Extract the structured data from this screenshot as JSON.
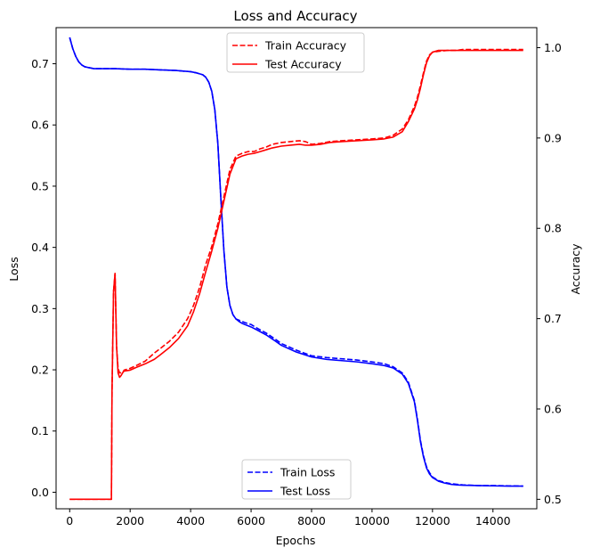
{
  "chart_data": {
    "type": "line",
    "title": "Loss and Accuracy",
    "xlabel": "Epochs",
    "ylabel_left": "Loss",
    "ylabel_right": "Accuracy",
    "xlim": [
      -450,
      15450
    ],
    "ylim_left": [
      -0.027,
      0.759
    ],
    "ylim_right": [
      0.4895,
      1.0222
    ],
    "x_ticks": [
      0,
      2000,
      4000,
      6000,
      8000,
      10000,
      12000,
      14000
    ],
    "y_left_ticks": [
      0.0,
      0.1,
      0.2,
      0.3,
      0.4,
      0.5,
      0.6,
      0.7
    ],
    "y_right_ticks": [
      0.5,
      0.6,
      0.7,
      0.8,
      0.9,
      1.0
    ],
    "x_tick_labels": [
      "0",
      "2000",
      "4000",
      "6000",
      "8000",
      "10000",
      "12000",
      "14000"
    ],
    "y_left_tick_labels": [
      "0.0",
      "0.1",
      "0.2",
      "0.3",
      "0.4",
      "0.5",
      "0.6",
      "0.7"
    ],
    "y_right_tick_labels": [
      "0.5",
      "0.6",
      "0.7",
      "0.8",
      "0.9",
      "1.0"
    ],
    "grid": false,
    "legends": {
      "accuracy": {
        "placement": "top-center",
        "entries": [
          "Train Accuracy",
          "Test Accuracy"
        ]
      },
      "loss": {
        "placement": "bottom-center",
        "entries": [
          "Train Loss",
          "Test Loss"
        ]
      }
    },
    "series": [
      {
        "name": "Train Loss",
        "axis": "left",
        "color": "#0000ff",
        "style": "dashed",
        "x": [
          0,
          100,
          200,
          300,
          400,
          500,
          600,
          800,
          1000,
          1500,
          2000,
          2500,
          3000,
          3500,
          4000,
          4200,
          4400,
          4500,
          4600,
          4700,
          4800,
          4900,
          5000,
          5100,
          5200,
          5300,
          5400,
          5500,
          5600,
          5700,
          5800,
          6000,
          6200,
          6500,
          6800,
          7000,
          7500,
          8000,
          8500,
          9000,
          9500,
          10000,
          10400,
          10700,
          11000,
          11200,
          11400,
          11500,
          11600,
          11700,
          11800,
          11900,
          12000,
          12200,
          12400,
          12600,
          12800,
          13000,
          13500,
          14000,
          14500,
          15000
        ],
        "y": [
          0.743,
          0.725,
          0.712,
          0.703,
          0.698,
          0.695,
          0.694,
          0.692,
          0.692,
          0.692,
          0.691,
          0.691,
          0.69,
          0.689,
          0.687,
          0.685,
          0.682,
          0.678,
          0.67,
          0.655,
          0.625,
          0.57,
          0.48,
          0.395,
          0.335,
          0.305,
          0.29,
          0.283,
          0.281,
          0.279,
          0.277,
          0.274,
          0.268,
          0.26,
          0.25,
          0.243,
          0.232,
          0.223,
          0.22,
          0.218,
          0.216,
          0.213,
          0.21,
          0.205,
          0.195,
          0.18,
          0.15,
          0.12,
          0.085,
          0.06,
          0.042,
          0.032,
          0.025,
          0.019,
          0.016,
          0.014,
          0.013,
          0.012,
          0.011,
          0.011,
          0.0105,
          0.01
        ]
      },
      {
        "name": "Test Loss",
        "axis": "left",
        "color": "#0000ff",
        "style": "solid",
        "x": [
          0,
          100,
          200,
          300,
          400,
          500,
          600,
          800,
          1000,
          1500,
          2000,
          2500,
          3000,
          3500,
          4000,
          4200,
          4400,
          4500,
          4600,
          4700,
          4800,
          4900,
          5000,
          5100,
          5200,
          5300,
          5400,
          5500,
          5600,
          5700,
          5800,
          6000,
          6200,
          6500,
          6800,
          7000,
          7500,
          8000,
          8500,
          9000,
          9500,
          10000,
          10400,
          10700,
          11000,
          11200,
          11400,
          11500,
          11600,
          11700,
          11800,
          11900,
          12000,
          12200,
          12400,
          12600,
          12800,
          13000,
          13500,
          14000,
          14500,
          15000
        ],
        "y": [
          0.743,
          0.725,
          0.712,
          0.703,
          0.698,
          0.695,
          0.694,
          0.692,
          0.692,
          0.692,
          0.691,
          0.691,
          0.69,
          0.689,
          0.687,
          0.685,
          0.682,
          0.678,
          0.67,
          0.655,
          0.625,
          0.57,
          0.48,
          0.395,
          0.335,
          0.305,
          0.29,
          0.283,
          0.279,
          0.276,
          0.274,
          0.27,
          0.265,
          0.257,
          0.247,
          0.24,
          0.229,
          0.221,
          0.217,
          0.215,
          0.213,
          0.21,
          0.207,
          0.203,
          0.193,
          0.178,
          0.148,
          0.118,
          0.083,
          0.058,
          0.04,
          0.03,
          0.024,
          0.018,
          0.015,
          0.013,
          0.012,
          0.0115,
          0.011,
          0.0105,
          0.01,
          0.01
        ]
      },
      {
        "name": "Train Accuracy",
        "axis": "right",
        "color": "#ff0000",
        "style": "dashed",
        "x": [
          0,
          1380,
          1400,
          1450,
          1500,
          1550,
          1600,
          1650,
          1700,
          1750,
          1800,
          2000,
          2200,
          2500,
          2800,
          3000,
          3300,
          3600,
          3900,
          4100,
          4300,
          4500,
          4700,
          4900,
          5100,
          5300,
          5500,
          5700,
          5900,
          6100,
          6300,
          6500,
          6700,
          7000,
          7300,
          7600,
          7800,
          8000,
          8300,
          8600,
          9000,
          9500,
          10000,
          10400,
          10700,
          11000,
          11200,
          11400,
          11500,
          11600,
          11700,
          11800,
          11900,
          12000,
          12200,
          12500,
          12800,
          13000,
          13500,
          14000,
          14500,
          15000
        ],
        "y": [
          0.5,
          0.5,
          0.62,
          0.73,
          0.75,
          0.67,
          0.645,
          0.64,
          0.64,
          0.64,
          0.643,
          0.645,
          0.648,
          0.653,
          0.662,
          0.667,
          0.675,
          0.685,
          0.7,
          0.715,
          0.735,
          0.76,
          0.78,
          0.805,
          0.835,
          0.865,
          0.88,
          0.883,
          0.885,
          0.885,
          0.888,
          0.89,
          0.893,
          0.895,
          0.896,
          0.897,
          0.896,
          0.893,
          0.894,
          0.896,
          0.897,
          0.898,
          0.899,
          0.9,
          0.903,
          0.91,
          0.92,
          0.935,
          0.945,
          0.958,
          0.972,
          0.985,
          0.992,
          0.995,
          0.996,
          0.997,
          0.997,
          0.998,
          0.998,
          0.998,
          0.998,
          0.998
        ]
      },
      {
        "name": "Test Accuracy",
        "axis": "right",
        "color": "#ff0000",
        "style": "solid",
        "x": [
          0,
          1380,
          1400,
          1450,
          1500,
          1550,
          1600,
          1650,
          1700,
          1750,
          1800,
          2000,
          2200,
          2500,
          2800,
          3000,
          3300,
          3600,
          3900,
          4100,
          4300,
          4500,
          4700,
          4900,
          5100,
          5300,
          5500,
          5700,
          5900,
          6100,
          6300,
          6500,
          6700,
          7000,
          7300,
          7600,
          7800,
          8000,
          8300,
          8600,
          9000,
          9500,
          10000,
          10400,
          10700,
          11000,
          11200,
          11400,
          11500,
          11600,
          11700,
          11800,
          11900,
          12000,
          12200,
          12500,
          12800,
          13000,
          13500,
          14000,
          14500,
          15000
        ],
        "y": [
          0.5,
          0.5,
          0.62,
          0.73,
          0.75,
          0.67,
          0.64,
          0.635,
          0.637,
          0.64,
          0.642,
          0.643,
          0.646,
          0.65,
          0.655,
          0.66,
          0.668,
          0.678,
          0.692,
          0.708,
          0.728,
          0.752,
          0.775,
          0.8,
          0.83,
          0.86,
          0.877,
          0.88,
          0.882,
          0.883,
          0.885,
          0.887,
          0.889,
          0.891,
          0.892,
          0.893,
          0.892,
          0.892,
          0.893,
          0.895,
          0.896,
          0.897,
          0.898,
          0.899,
          0.901,
          0.907,
          0.918,
          0.932,
          0.942,
          0.955,
          0.97,
          0.983,
          0.991,
          0.995,
          0.997,
          0.997,
          0.997,
          0.997,
          0.997,
          0.997,
          0.997,
          0.997
        ]
      }
    ]
  }
}
